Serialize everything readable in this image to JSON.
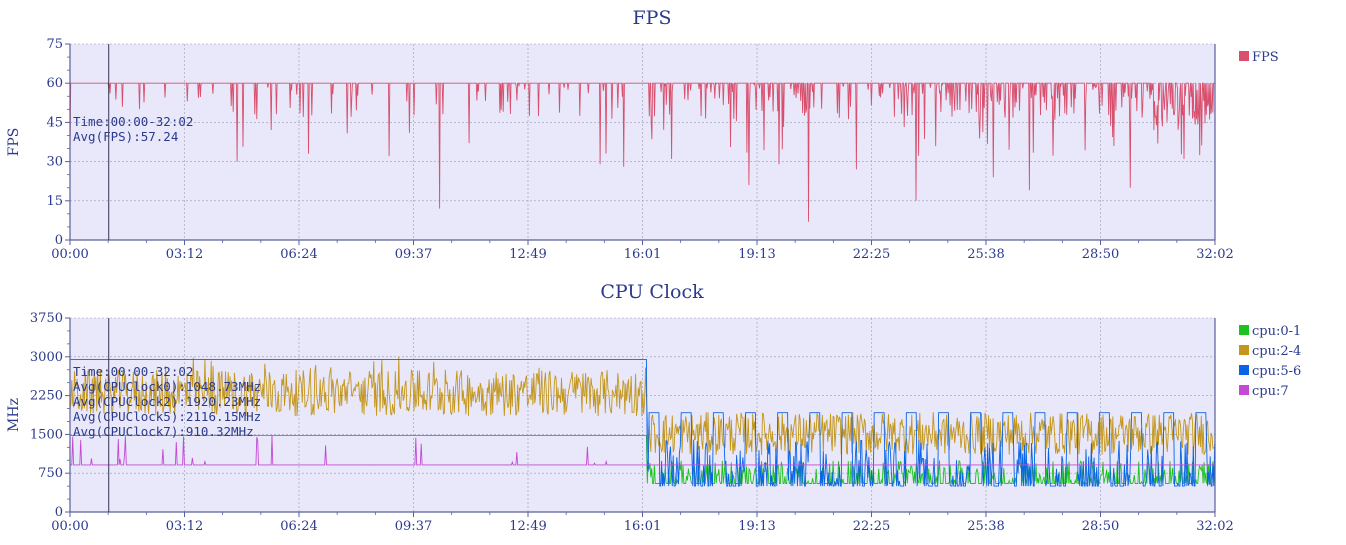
{
  "colors": {
    "plot_bg": "#e8e8fa",
    "axis": "#5a5f9a",
    "grid": "#9a9ab4",
    "text": "#2b3a8c",
    "cursor": "#333355"
  },
  "chart_data": [
    {
      "id": "fps",
      "type": "line",
      "title": "FPS",
      "ylabel": "FPS",
      "xlabel": "",
      "x_range_seconds": [
        0,
        1922
      ],
      "x_tick_labels": [
        "00:00",
        "03:12",
        "06:24",
        "09:37",
        "12:49",
        "16:01",
        "19:13",
        "22:25",
        "25:38",
        "28:50",
        "32:02"
      ],
      "ylim": [
        0,
        75
      ],
      "y_ticks": [
        0,
        15,
        30,
        45,
        60,
        75
      ],
      "grid": true,
      "legend_position": "right",
      "series": [
        {
          "name": "FPS",
          "color": "#d9506e",
          "baseline": 60,
          "x": [
            0,
            30,
            100,
            140,
            280,
            330,
            400,
            570,
            660,
            840,
            920,
            930,
            1010,
            1080,
            1140,
            1190,
            1230,
            1300,
            1350,
            1420,
            1440,
            1550,
            1610,
            1620,
            1780,
            1870,
            1922
          ],
          "dips": [
            {
              "x": 0,
              "y": 33
            },
            {
              "x": 280,
              "y": 30
            },
            {
              "x": 400,
              "y": 33
            },
            {
              "x": 570,
              "y": 41
            },
            {
              "x": 620,
              "y": 12
            },
            {
              "x": 890,
              "y": 29
            },
            {
              "x": 930,
              "y": 28
            },
            {
              "x": 1010,
              "y": 31
            },
            {
              "x": 1140,
              "y": 21
            },
            {
              "x": 1190,
              "y": 29
            },
            {
              "x": 1240,
              "y": 7
            },
            {
              "x": 1320,
              "y": 27
            },
            {
              "x": 1420,
              "y": 15
            },
            {
              "x": 1550,
              "y": 24
            },
            {
              "x": 1610,
              "y": 19
            },
            {
              "x": 1780,
              "y": 20
            },
            {
              "x": 1870,
              "y": 31
            }
          ]
        }
      ],
      "cursor_x_seconds": 65,
      "tooltip": [
        "Time:00:00-32:02",
        "Avg(FPS):57.24"
      ]
    },
    {
      "id": "cpu",
      "type": "line",
      "title": "CPU Clock",
      "ylabel": "MHz",
      "xlabel": "",
      "x_range_seconds": [
        0,
        1922
      ],
      "x_tick_labels": [
        "00:00",
        "03:12",
        "06:24",
        "09:37",
        "12:49",
        "16:01",
        "19:13",
        "22:25",
        "25:38",
        "28:50",
        "32:02"
      ],
      "ylim": [
        0,
        3750
      ],
      "y_ticks": [
        0,
        750,
        1500,
        2250,
        3000,
        3750
      ],
      "grid": true,
      "legend_position": "right",
      "series": [
        {
          "name": "cpu:0-1",
          "color": "#1ec21e",
          "x": [
            0,
            968,
            970,
            1922
          ],
          "y": [
            1480,
            1480,
            700,
            650
          ]
        },
        {
          "name": "cpu:2-4",
          "color": "#c4961c",
          "x": [
            0,
            968,
            970,
            1922
          ],
          "y": [
            2300,
            2400,
            1600,
            1500
          ]
        },
        {
          "name": "cpu:5-6",
          "color": "#0a64e6",
          "x": [
            0,
            968,
            970,
            1922
          ],
          "y": [
            2950,
            2950,
            1920,
            1200
          ]
        },
        {
          "name": "cpu:7",
          "color": "#c44ad6",
          "x": [
            0,
            1922
          ],
          "y": [
            910,
            910
          ]
        }
      ],
      "cursor_x_seconds": 65,
      "tooltip": [
        "Time:00:00-32:02",
        "Avg(CPUClock0):1048.73MHz",
        "Avg(CPUClock2):1920.23MHz",
        "Avg(CPUClock5):2116.15MHz",
        "Avg(CPUClock7):910.32MHz"
      ]
    }
  ]
}
